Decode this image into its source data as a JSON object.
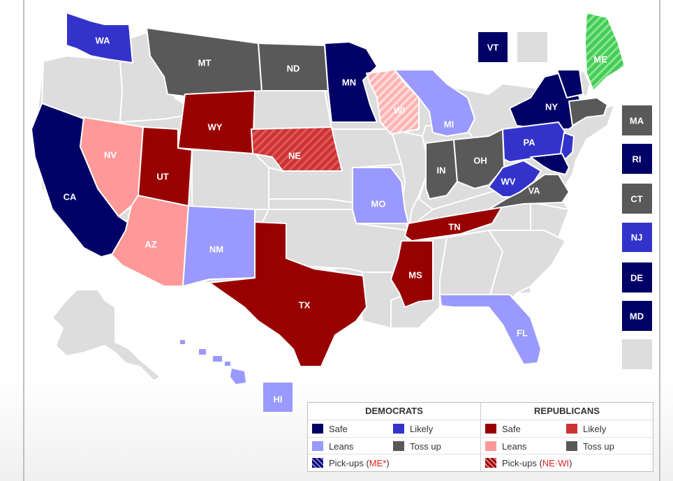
{
  "colors": {
    "dem_safe": "#000066",
    "dem_likely": "#3333cc",
    "dem_leans": "#9999ff",
    "rep_safe": "#990000",
    "rep_likely": "#cc3333",
    "rep_leans": "#ff9999",
    "tossup": "#595959",
    "no_race": "#dddddd",
    "independent_pickup": "#44cc55",
    "rep_pickup_light": "#ffcccc"
  },
  "states": {
    "WA": "WA",
    "MT": "MT",
    "ND": "ND",
    "MN": "MN",
    "WI": "WI",
    "MI": "MI",
    "NY": "NY",
    "ME": "ME",
    "CA": "CA",
    "NV": "NV",
    "WY": "WY",
    "UT": "UT",
    "NE": "NE",
    "AZ": "AZ",
    "NM": "NM",
    "TX": "TX",
    "MO": "MO",
    "TN": "TN",
    "MS": "MS",
    "IN": "IN",
    "OH": "OH",
    "PA": "PA",
    "WV": "WV",
    "VA": "VA",
    "FL": "FL",
    "HI": "HI"
  },
  "side_boxes": {
    "VT": "VT",
    "MA": "MA",
    "RI": "RI",
    "CT": "CT",
    "NJ": "NJ",
    "DE": "DE",
    "MD": "MD"
  },
  "legend": {
    "dem_header": "DEMOCRATS",
    "rep_header": "REPUBLICANS",
    "safe": "Safe",
    "likely": "Likely",
    "leans": "Leans",
    "tossup": "Toss up",
    "pickups": "Pick-ups (",
    "dem_pickup_states": "ME*",
    "rep_pickup_ne": "NE",
    "rep_pickup_sep": " · ",
    "rep_pickup_wi": "WI",
    "close_paren": ")"
  }
}
